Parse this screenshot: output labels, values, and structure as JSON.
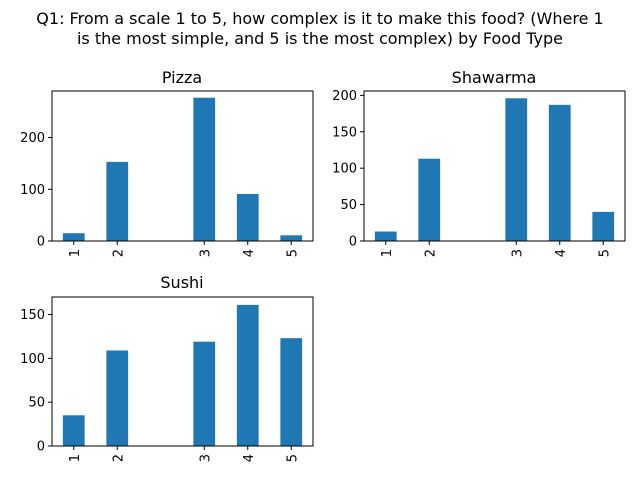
{
  "figure": {
    "title_lines": [
      "Q1: From a scale 1 to 5, how complex is it to make this food? (Where 1",
      "is the most simple, and 5 is the most complex) by Food Type"
    ],
    "bar_color": "#1f77b4"
  },
  "chart_data": [
    {
      "type": "bar",
      "title": "Pizza",
      "categories": [
        "1",
        "2",
        "3",
        "4",
        "5"
      ],
      "values": [
        15,
        153,
        277,
        91,
        11
      ],
      "yticks": [
        0,
        100,
        200
      ],
      "ylim": [
        0,
        290
      ]
    },
    {
      "type": "bar",
      "title": "Shawarma",
      "categories": [
        "1",
        "2",
        "3",
        "4",
        "5"
      ],
      "values": [
        13,
        113,
        196,
        187,
        40
      ],
      "yticks": [
        0,
        50,
        100,
        150,
        200
      ],
      "ylim": [
        0,
        206
      ]
    },
    {
      "type": "bar",
      "title": "Sushi",
      "categories": [
        "1",
        "2",
        "3",
        "4",
        "5"
      ],
      "values": [
        35,
        109,
        119,
        161,
        123
      ],
      "yticks": [
        0,
        50,
        100,
        150
      ],
      "ylim": [
        0,
        170
      ]
    }
  ]
}
